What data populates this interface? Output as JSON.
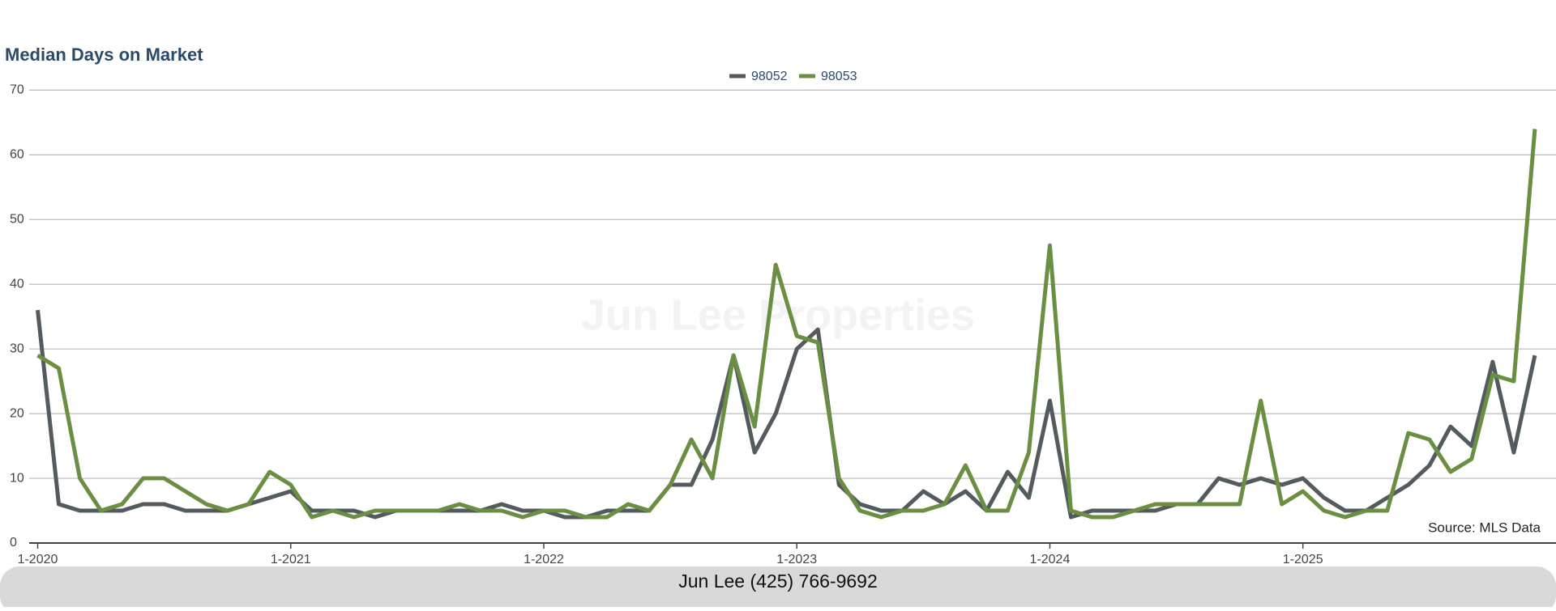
{
  "chart_data": {
    "type": "line",
    "title": "Median Days on Market",
    "watermark": "Jun Lee Properties",
    "source": "Source: MLS Data",
    "footer": "Jun Lee (425) 766-9692",
    "categories": [
      "1-2020",
      null,
      null,
      null,
      null,
      null,
      null,
      null,
      null,
      null,
      null,
      null,
      "1-2021",
      null,
      null,
      null,
      null,
      null,
      null,
      null,
      null,
      null,
      null,
      null,
      "1-2022",
      null,
      null,
      null,
      null,
      null,
      null,
      null,
      null,
      null,
      null,
      null,
      "1-2023",
      null,
      null,
      null,
      null,
      null,
      null,
      null,
      null,
      null,
      null,
      null,
      "1-2024",
      null,
      null,
      null,
      null,
      null,
      null,
      null,
      null,
      null,
      null,
      null,
      "1-2025",
      null,
      null,
      null,
      null,
      null,
      null,
      null,
      null,
      null,
      null,
      null
    ],
    "series": [
      {
        "name": "98052",
        "color": "#545b5f",
        "values": [
          36,
          6,
          5,
          5,
          5,
          6,
          6,
          5,
          5,
          5,
          6,
          7,
          8,
          5,
          5,
          5,
          4,
          5,
          5,
          5,
          5,
          5,
          6,
          5,
          5,
          4,
          4,
          5,
          5,
          5,
          9,
          9,
          16,
          29,
          14,
          20,
          30,
          33,
          9,
          6,
          5,
          5,
          8,
          6,
          8,
          5,
          11,
          7,
          22,
          4,
          5,
          5,
          5,
          5,
          6,
          6,
          10,
          9,
          10,
          9,
          10,
          7,
          5,
          5,
          7,
          9,
          12,
          18,
          15,
          28,
          14,
          29
        ]
      },
      {
        "name": "98053",
        "color": "#6a8f43",
        "values": [
          29,
          27,
          10,
          5,
          6,
          10,
          10,
          8,
          6,
          5,
          6,
          11,
          9,
          4,
          5,
          4,
          5,
          5,
          5,
          5,
          6,
          5,
          5,
          4,
          5,
          5,
          4,
          4,
          6,
          5,
          9,
          16,
          10,
          29,
          18,
          43,
          32,
          31,
          10,
          5,
          4,
          5,
          5,
          6,
          12,
          5,
          5,
          14,
          46,
          5,
          4,
          4,
          5,
          6,
          6,
          6,
          6,
          6,
          22,
          6,
          8,
          5,
          4,
          5,
          5,
          17,
          16,
          11,
          13,
          26,
          25,
          64
        ]
      }
    ],
    "ylim": [
      0,
      70
    ],
    "yticks": [
      0,
      10,
      20,
      30,
      40,
      50,
      60,
      70
    ],
    "grid": true,
    "legend": "top"
  }
}
